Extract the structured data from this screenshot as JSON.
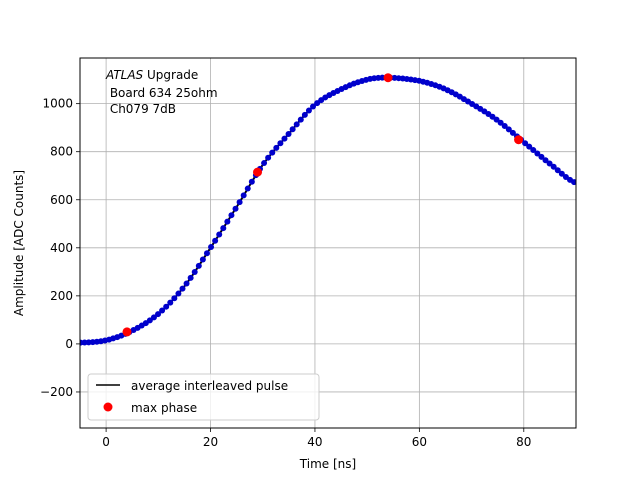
{
  "chart_data": {
    "type": "scatter",
    "title": "",
    "xlabel": "Time [ns]",
    "ylabel": "Amplitude [ADC Counts]",
    "xlim": [
      -5,
      90
    ],
    "ylim": [
      -350,
      1190
    ],
    "xticks": [
      0,
      20,
      40,
      60,
      80
    ],
    "yticks": [
      -200,
      0,
      200,
      400,
      600,
      800,
      1000
    ],
    "grid": true,
    "legend_position": "lower-left",
    "annotation": {
      "experiment": "ATLAS",
      "line1_rest": " Upgrade",
      "line2": " Board 634 25ohm",
      "line3": " Ch079 7dB"
    },
    "series": [
      {
        "name": "average interleaved pulse",
        "kind": "line",
        "color": "#000000",
        "x": [
          -5,
          0,
          5,
          10,
          15,
          20,
          25,
          30,
          35,
          40,
          45,
          50,
          54,
          60,
          65,
          70,
          75,
          80,
          85,
          90
        ],
        "y": [
          5,
          15,
          55,
          125,
          240,
          400,
          570,
          745,
          875,
          995,
          1060,
          1100,
          1108,
          1095,
          1060,
          1000,
          930,
          840,
          750,
          670
        ]
      },
      {
        "name": "",
        "kind": "markers",
        "color": "#0000cc",
        "x": [
          -5,
          0,
          5,
          10,
          15,
          20,
          25,
          30,
          35,
          40,
          45,
          50,
          54,
          60,
          65,
          70,
          75,
          80,
          85,
          90
        ],
        "y": [
          5,
          15,
          55,
          125,
          240,
          400,
          570,
          745,
          875,
          995,
          1060,
          1100,
          1108,
          1095,
          1060,
          1000,
          930,
          840,
          750,
          670
        ]
      },
      {
        "name": "max phase",
        "kind": "markers",
        "color": "#ff0000",
        "x": [
          4,
          29,
          54,
          79
        ],
        "y": [
          50,
          715,
          1108,
          850
        ]
      }
    ]
  }
}
